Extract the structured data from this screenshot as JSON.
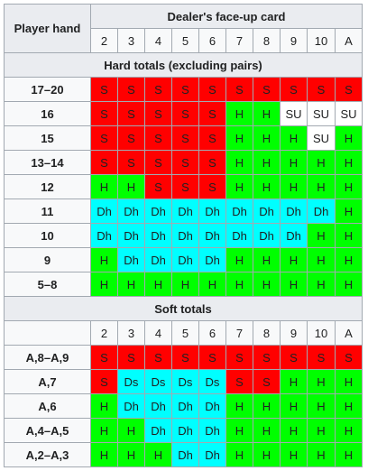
{
  "header": {
    "player_hand_label": "Player hand",
    "dealer_label": "Dealer's face-up card",
    "dealer_cards": [
      "2",
      "3",
      "4",
      "5",
      "6",
      "7",
      "8",
      "9",
      "10",
      "A"
    ]
  },
  "sections": [
    {
      "title": "Hard totals (excluding pairs)",
      "show_card_row": false,
      "rows": [
        {
          "hand": "17–20",
          "actions": [
            "S",
            "S",
            "S",
            "S",
            "S",
            "S",
            "S",
            "S",
            "S",
            "S"
          ]
        },
        {
          "hand": "16",
          "actions": [
            "S",
            "S",
            "S",
            "S",
            "S",
            "H",
            "H",
            "SU",
            "SU",
            "SU"
          ]
        },
        {
          "hand": "15",
          "actions": [
            "S",
            "S",
            "S",
            "S",
            "S",
            "H",
            "H",
            "H",
            "SU",
            "H"
          ]
        },
        {
          "hand": "13–14",
          "actions": [
            "S",
            "S",
            "S",
            "S",
            "S",
            "H",
            "H",
            "H",
            "H",
            "H"
          ]
        },
        {
          "hand": "12",
          "actions": [
            "H",
            "H",
            "S",
            "S",
            "S",
            "H",
            "H",
            "H",
            "H",
            "H"
          ]
        },
        {
          "hand": "11",
          "actions": [
            "Dh",
            "Dh",
            "Dh",
            "Dh",
            "Dh",
            "Dh",
            "Dh",
            "Dh",
            "Dh",
            "H"
          ]
        },
        {
          "hand": "10",
          "actions": [
            "Dh",
            "Dh",
            "Dh",
            "Dh",
            "Dh",
            "Dh",
            "Dh",
            "Dh",
            "H",
            "H"
          ]
        },
        {
          "hand": "9",
          "actions": [
            "H",
            "Dh",
            "Dh",
            "Dh",
            "Dh",
            "H",
            "H",
            "H",
            "H",
            "H"
          ]
        },
        {
          "hand": "5–8",
          "actions": [
            "H",
            "H",
            "H",
            "H",
            "H",
            "H",
            "H",
            "H",
            "H",
            "H"
          ]
        }
      ]
    },
    {
      "title": "Soft totals",
      "show_card_row": true,
      "rows": [
        {
          "hand": "A,8–A,9",
          "actions": [
            "S",
            "S",
            "S",
            "S",
            "S",
            "S",
            "S",
            "S",
            "S",
            "S"
          ]
        },
        {
          "hand": "A,7",
          "actions": [
            "S",
            "Ds",
            "Ds",
            "Ds",
            "Ds",
            "S",
            "S",
            "H",
            "H",
            "H"
          ]
        },
        {
          "hand": "A,6",
          "actions": [
            "H",
            "Dh",
            "Dh",
            "Dh",
            "Dh",
            "H",
            "H",
            "H",
            "H",
            "H"
          ]
        },
        {
          "hand": "A,4–A,5",
          "actions": [
            "H",
            "H",
            "Dh",
            "Dh",
            "Dh",
            "H",
            "H",
            "H",
            "H",
            "H"
          ]
        },
        {
          "hand": "A,2–A,3",
          "actions": [
            "H",
            "H",
            "H",
            "Dh",
            "Dh",
            "H",
            "H",
            "H",
            "H",
            "H"
          ]
        }
      ]
    }
  ],
  "colors": {
    "S": "#ff0000",
    "H": "#00ff00",
    "Dh": "#00ffff",
    "Ds": "#00ffff",
    "SU": "#ffffff"
  }
}
